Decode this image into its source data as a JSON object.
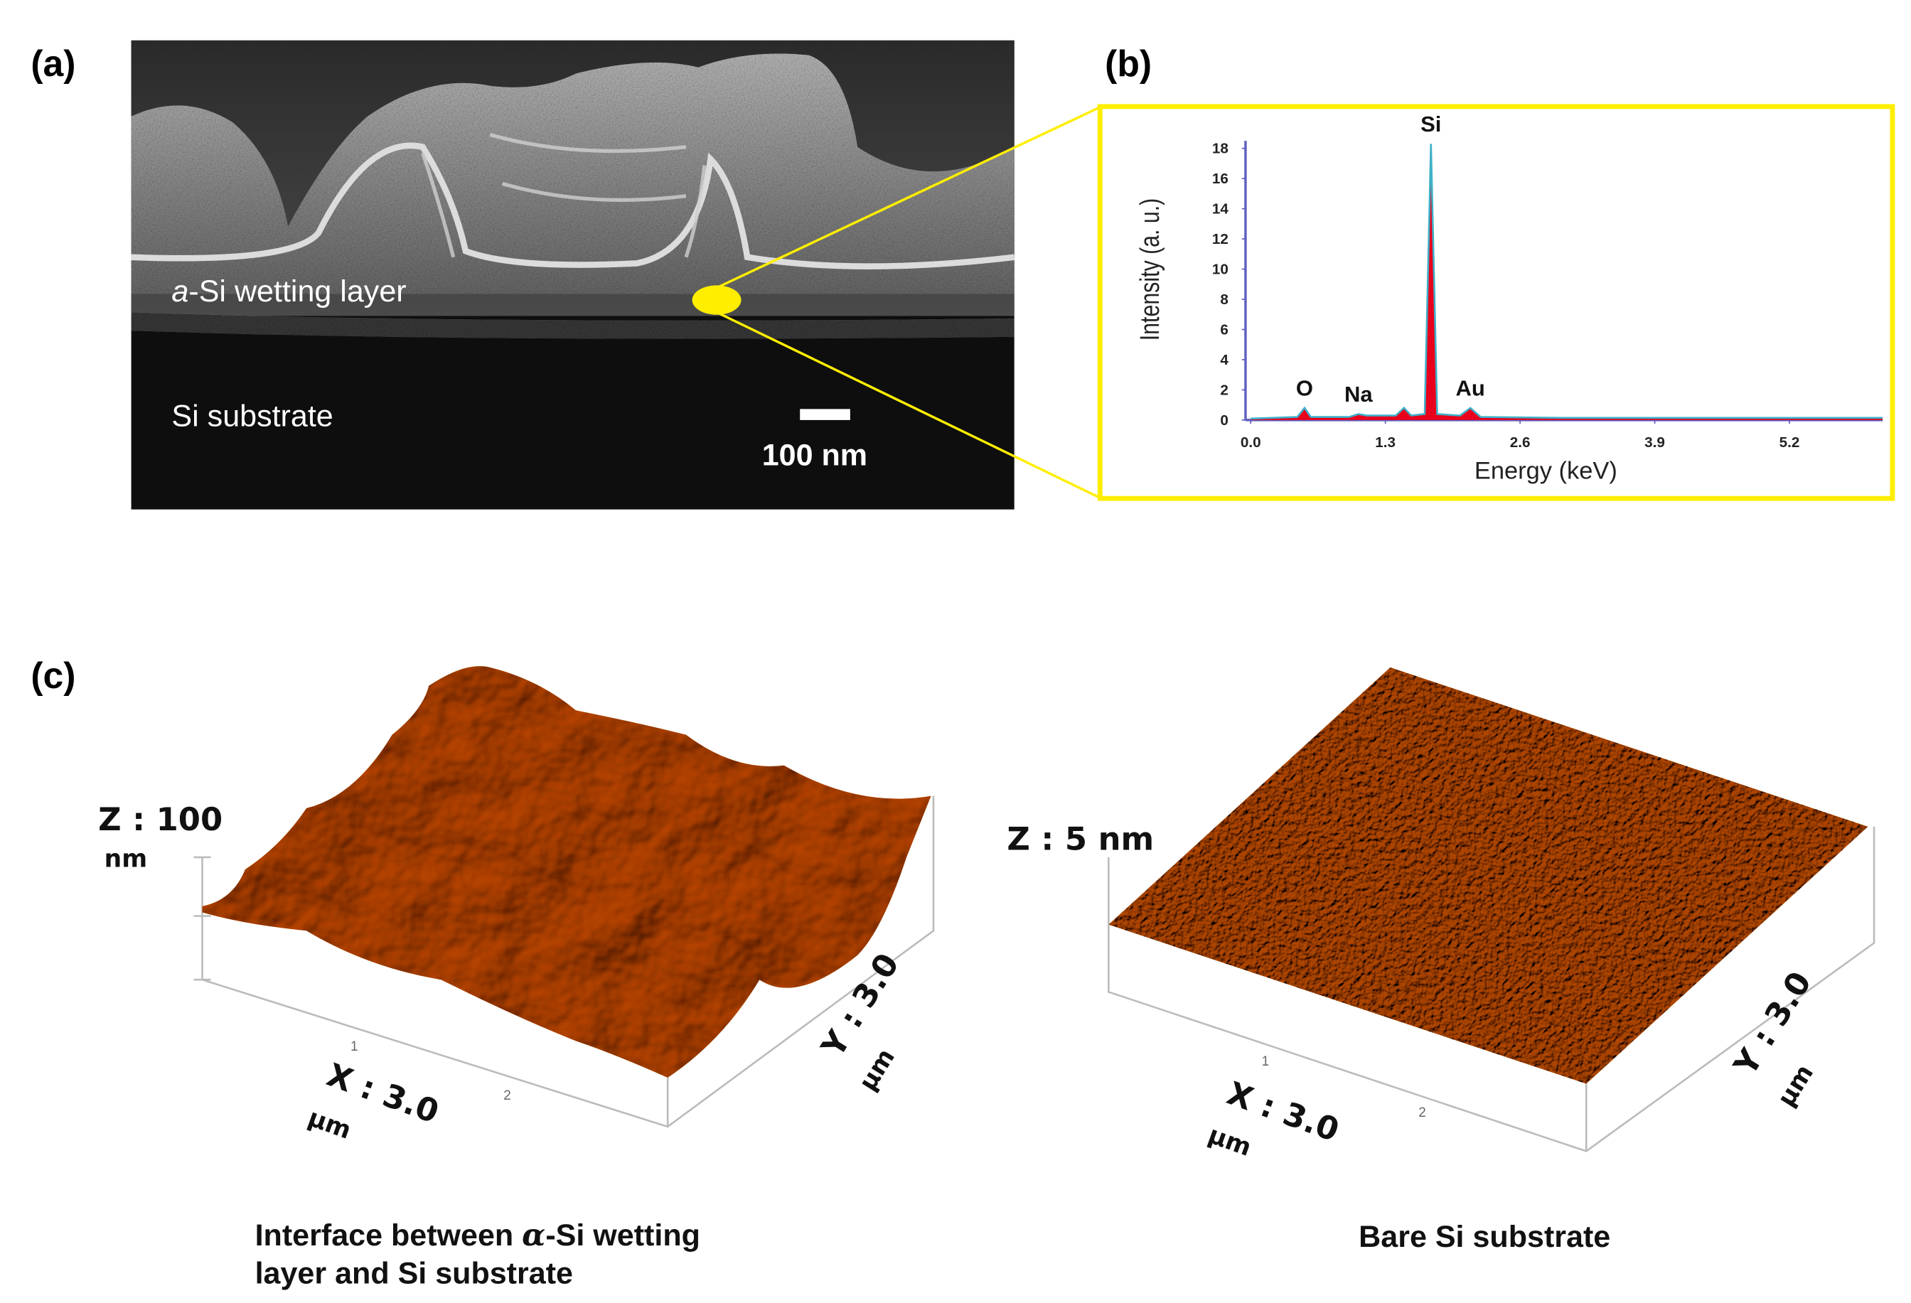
{
  "panels": {
    "a": {
      "label": "(a)",
      "layer_italic": "a",
      "layer_rest": "-Si wetting layer",
      "substrate": "Si substrate",
      "scale_bar": "100 nm"
    },
    "b": {
      "label": "(b)"
    },
    "c": {
      "label": "(c)",
      "left": {
        "z_label": "Z : 100",
        "z_unit": "nm",
        "x_label": "X : 3.0",
        "x_unit": "µm",
        "y_label": "Y : 3.0",
        "y_unit": "µm",
        "ticks": [
          "1",
          "2"
        ],
        "caption": [
          [
            "Interface between ",
            "α",
            "-Si wetting"
          ],
          [
            "layer and Si substrate"
          ]
        ]
      },
      "right": {
        "z_label": "Z : 5  nm",
        "x_label": "X : 3.0",
        "x_unit": "µm",
        "y_label": "Y : 3.0",
        "y_unit": "µm",
        "ticks": [
          "1",
          "2"
        ],
        "caption": "Bare Si substrate"
      }
    }
  },
  "chart_data": {
    "type": "area",
    "x_label": "Energy (keV)",
    "y_label": "Intensity (a. u.)",
    "x": [
      0,
      0.45,
      0.52,
      0.58,
      0.95,
      1.04,
      1.12,
      1.4,
      1.48,
      1.55,
      1.68,
      1.74,
      1.8,
      2.02,
      2.12,
      2.22,
      3,
      4,
      5,
      6.1
    ],
    "values": [
      0.1,
      0.2,
      0.8,
      0.2,
      0.2,
      0.4,
      0.3,
      0.3,
      0.8,
      0.3,
      0.4,
      18.3,
      0.4,
      0.3,
      0.8,
      0.2,
      0.15,
      0.15,
      0.15,
      0.15
    ],
    "color": "#e8001c",
    "line_color": "#3fb0c8",
    "xlim": [
      -0.05,
      6.1
    ],
    "ylim": [
      0,
      18.5
    ],
    "xticks": [
      {
        "value": 0,
        "label": "0.0"
      },
      1.3,
      2.6,
      3.9,
      5.2
    ],
    "yticks": [
      0,
      2,
      4,
      6,
      8,
      10,
      12,
      14,
      16,
      18
    ],
    "annotations": [
      {
        "text": "O",
        "x": 0.52,
        "y": 0.8
      },
      {
        "text": "Na",
        "x": 1.04,
        "y": 0.4
      },
      {
        "text": "Si",
        "x": 1.74,
        "y": 18.3
      },
      {
        "text": "Au",
        "x": 2.12,
        "y": 0.8
      }
    ]
  }
}
